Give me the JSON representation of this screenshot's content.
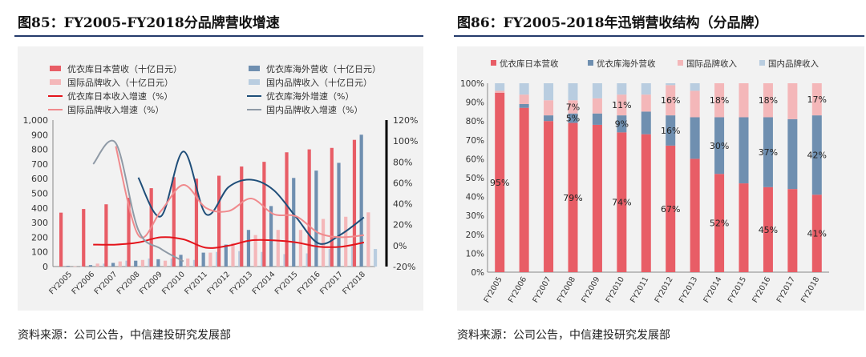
{
  "left": {
    "title": "图85：FY2005-FY2018分品牌营收增速",
    "source": "资料来源：公司公告，中信建投研究发展部",
    "legend": [
      {
        "label": "优衣库日本营收（十亿日元）",
        "kind": "bar",
        "color": "#e85d66"
      },
      {
        "label": "优衣库海外营收（十亿日元）",
        "kind": "bar",
        "color": "#6f8fb0"
      },
      {
        "label": "国际品牌收入（十亿日元）",
        "kind": "bar",
        "color": "#f4b7b9"
      },
      {
        "label": "国内品牌收入（十亿日元）",
        "kind": "bar",
        "color": "#b9cde0"
      },
      {
        "label": "优衣库日本收入增速（%）",
        "kind": "line",
        "color": "#e4141b"
      },
      {
        "label": "优衣库海外增速（%）",
        "kind": "line",
        "color": "#1f4e79"
      },
      {
        "label": "国际品牌收入增速（%）",
        "kind": "line",
        "color": "#f08a8d"
      },
      {
        "label": "国内品牌收入增速（%）",
        "kind": "line",
        "color": "#8f9aa6"
      }
    ]
  },
  "right": {
    "title": "图86：FY2005-2018年迅销营收结构（分品牌）",
    "source": "资料来源：公司公告，中信建投研究发展部",
    "legend": [
      {
        "label": "优衣库日本营收",
        "color": "#e85d66"
      },
      {
        "label": "优衣库海外营收",
        "color": "#6f8fb0"
      },
      {
        "label": "国际品牌收入",
        "color": "#f4b7b9"
      },
      {
        "label": "国内品牌收入",
        "color": "#b9cde0"
      }
    ]
  },
  "chart_data": [
    {
      "type": "bar",
      "title": "FY2005-FY2018分品牌营收增速",
      "categories": [
        "FY2005",
        "FY2006",
        "FY2007",
        "FY2008",
        "FY2009",
        "FY2010",
        "FY2011",
        "FY2012",
        "FY2013",
        "FY2014",
        "FY2015",
        "FY2016",
        "FY2017",
        "FY2018"
      ],
      "y_ticks": [
        "0",
        "100",
        "200",
        "300",
        "400",
        "500",
        "600",
        "700",
        "800",
        "900",
        "1,000"
      ],
      "y2_ticks": [
        "-20%",
        "0%",
        "20%",
        "40%",
        "60%",
        "80%",
        "100%",
        "120%"
      ],
      "ylim": [
        0,
        1000
      ],
      "y2lim": [
        -20,
        120
      ],
      "series": [
        {
          "name": "优衣库日本营收（十亿日元）",
          "type": "bar",
          "axis": "left",
          "color": "#e85d66",
          "values": [
            368,
            393,
            425,
            470,
            535,
            610,
            600,
            620,
            683,
            715,
            780,
            800,
            810,
            865
          ]
        },
        {
          "name": "优衣库海外营收（十亿日元）",
          "type": "bar",
          "axis": "left",
          "color": "#6f8fb0",
          "values": [
            5,
            10,
            25,
            40,
            50,
            80,
            95,
            150,
            250,
            413,
            605,
            655,
            708,
            900
          ]
        },
        {
          "name": "国际品牌收入（十亿日元）",
          "type": "bar",
          "axis": "left",
          "color": "#f4b7b9",
          "values": [
            2,
            20,
            35,
            45,
            40,
            55,
            95,
            160,
            215,
            250,
            250,
            325,
            340,
            370
          ]
        },
        {
          "name": "国内品牌收入（十亿日元）",
          "type": "bar",
          "axis": "left",
          "color": "#b9cde0",
          "values": [
            1,
            20,
            40,
            55,
            55,
            45,
            100,
            105,
            100,
            85,
            90,
            120,
            140,
            120
          ]
        },
        {
          "name": "优衣库日本收入增速（%）",
          "type": "line",
          "axis": "right",
          "color": "#e4141b",
          "values": [
            null,
            1,
            1,
            3,
            8,
            6,
            -2,
            0,
            5,
            5,
            3,
            -1,
            -1,
            3
          ]
        },
        {
          "name": "优衣库海外增速（%）",
          "type": "line",
          "axis": "right",
          "color": "#1f4e79",
          "values": [
            null,
            null,
            null,
            65,
            28,
            90,
            30,
            56,
            63,
            53,
            27,
            2,
            11,
            27
          ]
        },
        {
          "name": "国际品牌收入增速（%）",
          "type": "line",
          "axis": "right",
          "color": "#f08a8d",
          "values": [
            null,
            null,
            95,
            10,
            33,
            58,
            36,
            33,
            45,
            30,
            28,
            12,
            8,
            10
          ]
        },
        {
          "name": "国内品牌收入增速（%）",
          "type": "line",
          "axis": "right",
          "color": "#8f9aa6",
          "values": [
            null,
            78,
            98,
            15,
            -3,
            -15,
            null,
            null,
            null,
            null,
            null,
            null,
            null,
            null
          ]
        }
      ]
    },
    {
      "type": "bar",
      "stacked": true,
      "title": "FY2005-2018年迅销营收结构（分品牌）",
      "categories": [
        "FY2005",
        "FY2006",
        "FY2007",
        "FY2008",
        "FY2009",
        "FY2010",
        "FY2011",
        "FY2012",
        "FY2013",
        "FY2014",
        "FY2015",
        "FY2016",
        "FY2017",
        "FY2018"
      ],
      "y_ticks": [
        "0%",
        "10%",
        "20%",
        "30%",
        "40%",
        "50%",
        "60%",
        "70%",
        "80%",
        "90%",
        "100%"
      ],
      "ylim": [
        0,
        100
      ],
      "series": [
        {
          "name": "优衣库日本营收",
          "color": "#e85d66",
          "values": [
            95,
            87,
            80,
            79,
            78,
            74,
            73,
            67,
            60,
            52,
            47,
            45,
            44,
            41
          ]
        },
        {
          "name": "优衣库海外营收",
          "color": "#6f8fb0",
          "values": [
            0,
            2,
            3,
            5,
            6,
            9,
            12,
            16,
            22,
            30,
            35,
            37,
            37,
            42
          ]
        },
        {
          "name": "国际品牌收入",
          "color": "#f4b7b9",
          "values": [
            1,
            5,
            8,
            7,
            8,
            11,
            9,
            16,
            14,
            18,
            18,
            18,
            19,
            17
          ]
        },
        {
          "name": "国内品牌收入",
          "color": "#b9cde0",
          "values": [
            4,
            6,
            9,
            9,
            8,
            6,
            6,
            1,
            4,
            0,
            0,
            0,
            0,
            0
          ]
        }
      ],
      "data_labels": [
        {
          "category": "FY2005",
          "series": "优衣库日本营收",
          "text": "95%"
        },
        {
          "category": "FY2008",
          "series": "国际品牌收入",
          "text": "7%"
        },
        {
          "category": "FY2008",
          "series": "优衣库海外营收",
          "text": "5%"
        },
        {
          "category": "FY2008",
          "series": "优衣库日本营收",
          "text": "79%"
        },
        {
          "category": "FY2010",
          "series": "国际品牌收入",
          "text": "11%"
        },
        {
          "category": "FY2010",
          "series": "优衣库海外营收",
          "text": "9%"
        },
        {
          "category": "FY2010",
          "series": "优衣库日本营收",
          "text": "74%"
        },
        {
          "category": "FY2012",
          "series": "国际品牌收入",
          "text": "16%"
        },
        {
          "category": "FY2012",
          "series": "优衣库海外营收",
          "text": "16%"
        },
        {
          "category": "FY2012",
          "series": "优衣库日本营收",
          "text": "67%"
        },
        {
          "category": "FY2014",
          "series": "国际品牌收入",
          "text": "18%"
        },
        {
          "category": "FY2014",
          "series": "优衣库海外营收",
          "text": "30%"
        },
        {
          "category": "FY2014",
          "series": "优衣库日本营收",
          "text": "52%"
        },
        {
          "category": "FY2016",
          "series": "国际品牌收入",
          "text": "18%"
        },
        {
          "category": "FY2016",
          "series": "优衣库海外营收",
          "text": "37%"
        },
        {
          "category": "FY2016",
          "series": "优衣库日本营收",
          "text": "45%"
        },
        {
          "category": "FY2018",
          "series": "国际品牌收入",
          "text": "17%"
        },
        {
          "category": "FY2018",
          "series": "优衣库海外营收",
          "text": "42%"
        },
        {
          "category": "FY2018",
          "series": "优衣库日本营收",
          "text": "41%"
        }
      ]
    }
  ]
}
